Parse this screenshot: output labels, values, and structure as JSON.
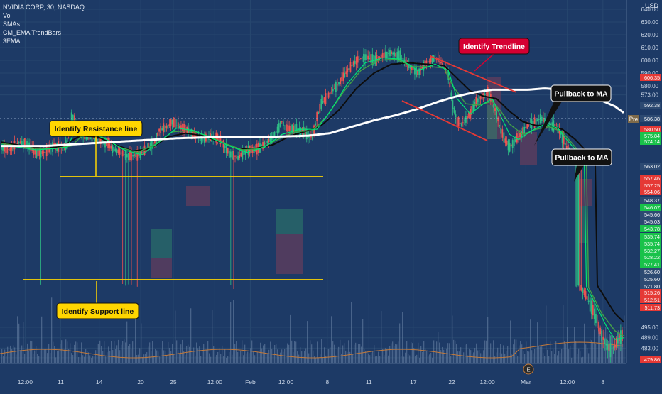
{
  "header": {
    "symbol_line": "NVIDIA CORP, 30, NASDAQ",
    "indicators": [
      "Vol",
      "SMAs",
      "CM_EMA TrendBars",
      "3EMA"
    ]
  },
  "axis": {
    "currency": "USD",
    "pre_badge": "Pre"
  },
  "annotations": {
    "resistance": "Identify Resistance line",
    "support": "Identify Support line",
    "trendline": "Identify Trendline",
    "pullback1": "Pullback to MA",
    "pullback2": "Pullback to MA",
    "event_marker": "E"
  },
  "colors": {
    "background": "#1d3a66",
    "up": "#2ebd85",
    "down": "#ef5350",
    "ema_fast": "#00e676",
    "ema_mid": "#43a047",
    "ema_slow": "#0d0d0d",
    "sma_long": "#ffffff",
    "yellow_label": "#ffd600",
    "red_label": "#d50032",
    "volume": "#6c85a8"
  },
  "chart_data": {
    "type": "candlestick",
    "title": "NVIDIA CORP, 30, NASDAQ",
    "ylabel": "USD",
    "ylim": [
      473,
      654
    ],
    "y_ticks": [
      640,
      630,
      620,
      610,
      600,
      590,
      580,
      573,
      495,
      489,
      483,
      477.5
    ],
    "x_ticks": [
      "12:00",
      "11",
      "14",
      "20",
      "25",
      "12:00",
      "Feb",
      "12:00",
      "8",
      "11",
      "17",
      "22",
      "12:00",
      "Mar",
      "12:00",
      "8"
    ],
    "price_labels": [
      {
        "value": 606.35,
        "color": "red"
      },
      {
        "value": 592.38,
        "color": "gray"
      },
      {
        "value": 586.38,
        "color": "gray"
      },
      {
        "value": 580.5,
        "color": "red"
      },
      {
        "value": 575.84,
        "color": "green"
      },
      {
        "value": 574.14,
        "color": "green"
      },
      {
        "value": 563.02,
        "color": "gray"
      },
      {
        "value": 557.46,
        "color": "red"
      },
      {
        "value": 557.25,
        "color": "red"
      },
      {
        "value": 554.06,
        "color": "red"
      },
      {
        "value": 548.37,
        "color": "gray"
      },
      {
        "value": 546.07,
        "color": "green"
      },
      {
        "value": 545.66,
        "color": "gray"
      },
      {
        "value": 545.03,
        "color": "gray"
      },
      {
        "value": 543.78,
        "color": "green"
      },
      {
        "value": 535.74,
        "color": "green"
      },
      {
        "value": 535.74,
        "color": "green"
      },
      {
        "value": 532.27,
        "color": "green"
      },
      {
        "value": 528.22,
        "color": "green"
      },
      {
        "value": 527.41,
        "color": "green"
      },
      {
        "value": 526.6,
        "color": "gray"
      },
      {
        "value": 525.6,
        "color": "gray"
      },
      {
        "value": 521.8,
        "color": "gray"
      },
      {
        "value": 515.26,
        "color": "red"
      },
      {
        "value": 512.51,
        "color": "red"
      },
      {
        "value": 511.73,
        "color": "red"
      },
      {
        "value": 479.86,
        "color": "red"
      }
    ],
    "close_path": [
      [
        0,
        532
      ],
      [
        2,
        530
      ],
      [
        4,
        536
      ],
      [
        6,
        534
      ],
      [
        8,
        527
      ],
      [
        10,
        528
      ],
      [
        12,
        533
      ],
      [
        14,
        532
      ],
      [
        15,
        535
      ],
      [
        16,
        556
      ],
      [
        17,
        551
      ],
      [
        18,
        543
      ],
      [
        20,
        542
      ],
      [
        22,
        538
      ],
      [
        24,
        536
      ],
      [
        25,
        532
      ],
      [
        27,
        528
      ],
      [
        29,
        525
      ],
      [
        31,
        526
      ],
      [
        33,
        530
      ],
      [
        35,
        536
      ],
      [
        36,
        545
      ],
      [
        38,
        548
      ],
      [
        39,
        552
      ],
      [
        40,
        549
      ],
      [
        42,
        546
      ],
      [
        44,
        542
      ],
      [
        46,
        538
      ],
      [
        48,
        540
      ],
      [
        50,
        538
      ],
      [
        52,
        527
      ],
      [
        54,
        524
      ],
      [
        56,
        530
      ],
      [
        58,
        530
      ],
      [
        60,
        534
      ],
      [
        62,
        540
      ],
      [
        63,
        546
      ],
      [
        64,
        552
      ],
      [
        65,
        547
      ],
      [
        67,
        546
      ],
      [
        69,
        544
      ],
      [
        71,
        540
      ],
      [
        72,
        555
      ],
      [
        73,
        566
      ],
      [
        75,
        574
      ],
      [
        77,
        582
      ],
      [
        79,
        592
      ],
      [
        81,
        600
      ],
      [
        83,
        603
      ],
      [
        85,
        600
      ],
      [
        87,
        604
      ],
      [
        89,
        606
      ],
      [
        91,
        603
      ],
      [
        93,
        596
      ],
      [
        95,
        590
      ],
      [
        97,
        598
      ],
      [
        99,
        602
      ],
      [
        101,
        596
      ],
      [
        102,
        588
      ],
      [
        103,
        566
      ],
      [
        104,
        552
      ],
      [
        105,
        550
      ],
      [
        107,
        558
      ],
      [
        108,
        566
      ],
      [
        109,
        570
      ],
      [
        111,
        575
      ],
      [
        112,
        568
      ],
      [
        113,
        558
      ],
      [
        114,
        545
      ],
      [
        115,
        537
      ],
      [
        116,
        532
      ],
      [
        118,
        540
      ],
      [
        120,
        549
      ],
      [
        122,
        552
      ],
      [
        123,
        555
      ],
      [
        125,
        550
      ],
      [
        127,
        547
      ],
      [
        128,
        540
      ],
      [
        129,
        532
      ],
      [
        131,
        523
      ],
      [
        133,
        515
      ],
      [
        135,
        505
      ],
      [
        136,
        498
      ],
      [
        137,
        490
      ],
      [
        138,
        485
      ],
      [
        139,
        482
      ],
      [
        140,
        484
      ],
      [
        141,
        489
      ],
      [
        142,
        490
      ]
    ],
    "ema_fast": [
      [
        0,
        534
      ],
      [
        4,
        532
      ],
      [
        8,
        530
      ],
      [
        12,
        531
      ],
      [
        15,
        532
      ],
      [
        17,
        546
      ],
      [
        20,
        544
      ],
      [
        24,
        538
      ],
      [
        28,
        530
      ],
      [
        32,
        526
      ],
      [
        36,
        536
      ],
      [
        40,
        547
      ],
      [
        44,
        545
      ],
      [
        48,
        539
      ],
      [
        52,
        533
      ],
      [
        56,
        528
      ],
      [
        60,
        532
      ],
      [
        64,
        542
      ],
      [
        68,
        546
      ],
      [
        72,
        546
      ],
      [
        75,
        560
      ],
      [
        79,
        582
      ],
      [
        83,
        598
      ],
      [
        87,
        602
      ],
      [
        91,
        601
      ],
      [
        95,
        592
      ],
      [
        99,
        597
      ],
      [
        102,
        592
      ],
      [
        104,
        570
      ],
      [
        107,
        558
      ],
      [
        110,
        566
      ],
      [
        112,
        570
      ],
      [
        114,
        556
      ],
      [
        116,
        542
      ],
      [
        118,
        538
      ],
      [
        121,
        545
      ],
      [
        124,
        550
      ],
      [
        127,
        547
      ],
      [
        129,
        538
      ],
      [
        132,
        526
      ],
      [
        135,
        511
      ],
      [
        138,
        496
      ],
      [
        140,
        488
      ],
      [
        142,
        489
      ]
    ],
    "ema_mid": [
      [
        0,
        535
      ],
      [
        4,
        533
      ],
      [
        8,
        531
      ],
      [
        12,
        531
      ],
      [
        16,
        533
      ],
      [
        19,
        543
      ],
      [
        23,
        540
      ],
      [
        27,
        532
      ],
      [
        31,
        528
      ],
      [
        35,
        534
      ],
      [
        39,
        544
      ],
      [
        43,
        545
      ],
      [
        47,
        541
      ],
      [
        51,
        535
      ],
      [
        55,
        530
      ],
      [
        59,
        531
      ],
      [
        63,
        538
      ],
      [
        67,
        544
      ],
      [
        71,
        545
      ],
      [
        74,
        555
      ],
      [
        78,
        575
      ],
      [
        82,
        592
      ],
      [
        86,
        600
      ],
      [
        90,
        601
      ],
      [
        94,
        595
      ],
      [
        98,
        595
      ],
      [
        101,
        594
      ],
      [
        103,
        580
      ],
      [
        106,
        566
      ],
      [
        109,
        565
      ],
      [
        112,
        568
      ],
      [
        114,
        560
      ],
      [
        116,
        550
      ],
      [
        119,
        542
      ],
      [
        122,
        546
      ],
      [
        125,
        548
      ],
      [
        128,
        544
      ],
      [
        131,
        532
      ],
      [
        134,
        518
      ],
      [
        137,
        503
      ],
      [
        140,
        493
      ],
      [
        142,
        490
      ]
    ],
    "ema_slow": [
      [
        0,
        536
      ],
      [
        5,
        533
      ],
      [
        10,
        531
      ],
      [
        14,
        533
      ],
      [
        18,
        541
      ],
      [
        22,
        540
      ],
      [
        26,
        534
      ],
      [
        30,
        529
      ],
      [
        34,
        531
      ],
      [
        38,
        540
      ],
      [
        42,
        543
      ],
      [
        46,
        541
      ],
      [
        50,
        536
      ],
      [
        54,
        531
      ],
      [
        58,
        531
      ],
      [
        62,
        534
      ],
      [
        66,
        541
      ],
      [
        70,
        545
      ],
      [
        73,
        549
      ],
      [
        77,
        561
      ],
      [
        81,
        578
      ],
      [
        85,
        590
      ],
      [
        89,
        597
      ],
      [
        93,
        598
      ],
      [
        97,
        597
      ],
      [
        101,
        596
      ],
      [
        104,
        586
      ],
      [
        107,
        576
      ],
      [
        110,
        572
      ],
      [
        113,
        570
      ],
      [
        116,
        560
      ],
      [
        119,
        552
      ],
      [
        122,
        549
      ],
      [
        125,
        549
      ],
      [
        128,
        546
      ],
      [
        131,
        538
      ],
      [
        134,
        527
      ],
      [
        137,
        515
      ],
      [
        140,
        503
      ],
      [
        142,
        498
      ]
    ],
    "sma_long": [
      [
        0,
        533
      ],
      [
        10,
        533
      ],
      [
        20,
        535
      ],
      [
        30,
        537
      ],
      [
        40,
        539
      ],
      [
        50,
        540
      ],
      [
        60,
        540
      ],
      [
        70,
        541
      ],
      [
        75,
        543
      ],
      [
        80,
        548
      ],
      [
        85,
        553
      ],
      [
        90,
        557
      ],
      [
        95,
        562
      ],
      [
        100,
        568
      ],
      [
        104,
        572
      ],
      [
        108,
        575
      ],
      [
        112,
        577
      ],
      [
        116,
        577
      ],
      [
        120,
        577
      ],
      [
        124,
        578
      ],
      [
        128,
        577
      ],
      [
        132,
        575
      ],
      [
        136,
        570
      ],
      [
        140,
        564
      ],
      [
        142,
        559
      ]
    ]
  }
}
